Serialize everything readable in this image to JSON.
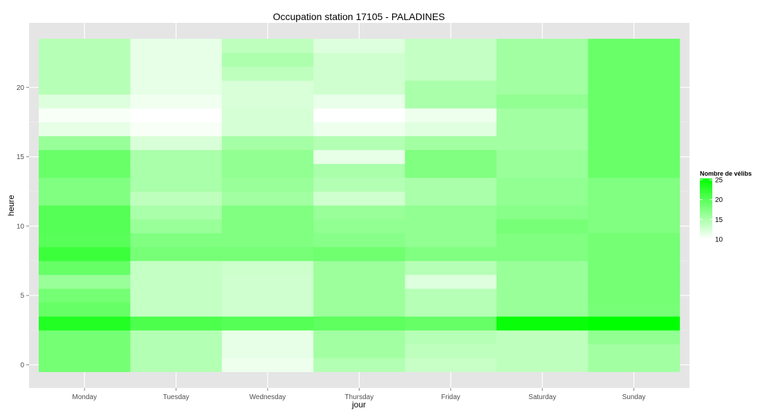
{
  "chart_data": {
    "type": "heatmap",
    "title": "Occupation station 17105 - PALADINES",
    "xlabel": "jour",
    "ylabel": "heure",
    "x_categories": [
      "Monday",
      "Tuesday",
      "Wednesday",
      "Thursday",
      "Friday",
      "Saturday",
      "Sunday"
    ],
    "y_values": [
      0,
      1,
      2,
      3,
      4,
      5,
      6,
      7,
      8,
      9,
      10,
      11,
      12,
      13,
      14,
      15,
      16,
      17,
      18,
      19,
      20,
      21,
      22,
      23
    ],
    "y_ticks": [
      0,
      5,
      10,
      15,
      20
    ],
    "ylim": [
      -0.5,
      23.5
    ],
    "grid": true,
    "legend": {
      "title": "Nombre de vélibs",
      "position": "right",
      "min": 10,
      "max": 25,
      "ticks": [
        10,
        15,
        20,
        25
      ],
      "low_color": "#ffffff",
      "high_color": "#00ff00"
    },
    "values": [
      [
        18.2,
        14.5,
        11.0,
        14.5,
        13.3,
        13.8,
        15.5
      ],
      [
        18.2,
        14.5,
        11.5,
        15.5,
        13.8,
        13.8,
        15.5
      ],
      [
        18.2,
        14.5,
        11.5,
        15.5,
        14.3,
        13.8,
        16.5
      ],
      [
        23.0,
        20.5,
        20.0,
        19.5,
        19.0,
        24.5,
        25.0
      ],
      [
        19.0,
        13.5,
        12.8,
        15.8,
        14.3,
        16.0,
        18.0
      ],
      [
        18.2,
        13.5,
        12.8,
        15.8,
        14.3,
        16.0,
        18.2
      ],
      [
        16.0,
        13.5,
        12.8,
        15.8,
        12.0,
        16.0,
        18.2
      ],
      [
        19.0,
        13.5,
        13.0,
        15.8,
        14.3,
        16.0,
        18.2
      ],
      [
        21.5,
        18.0,
        18.0,
        18.5,
        17.5,
        17.5,
        18.2
      ],
      [
        19.8,
        17.5,
        17.5,
        17.0,
        16.5,
        17.5,
        18.2
      ],
      [
        20.0,
        16.0,
        17.5,
        16.5,
        16.5,
        18.0,
        17.5
      ],
      [
        20.0,
        15.0,
        17.5,
        16.0,
        16.5,
        17.0,
        17.5
      ],
      [
        17.5,
        13.8,
        15.5,
        12.8,
        15.0,
        16.5,
        17.5
      ],
      [
        17.5,
        15.0,
        16.0,
        14.5,
        15.0,
        16.5,
        17.5
      ],
      [
        18.8,
        15.0,
        16.5,
        15.0,
        17.5,
        16.0,
        18.8
      ],
      [
        18.8,
        15.0,
        16.5,
        11.5,
        17.5,
        16.0,
        18.8
      ],
      [
        16.0,
        12.3,
        15.3,
        14.5,
        15.5,
        15.5,
        18.8
      ],
      [
        11.5,
        10.5,
        12.5,
        11.0,
        11.8,
        15.5,
        18.8
      ],
      [
        10.5,
        10.0,
        12.5,
        10.0,
        11.0,
        15.5,
        18.8
      ],
      [
        12.0,
        10.8,
        12.3,
        11.3,
        15.0,
        16.5,
        18.8
      ],
      [
        14.3,
        11.5,
        12.3,
        12.8,
        15.0,
        15.5,
        18.8
      ],
      [
        14.3,
        11.5,
        13.8,
        12.8,
        13.5,
        15.5,
        18.8
      ],
      [
        14.3,
        11.5,
        14.8,
        12.8,
        13.5,
        15.5,
        18.8
      ],
      [
        14.3,
        11.5,
        13.8,
        12.0,
        13.5,
        15.5,
        18.8
      ]
    ]
  }
}
